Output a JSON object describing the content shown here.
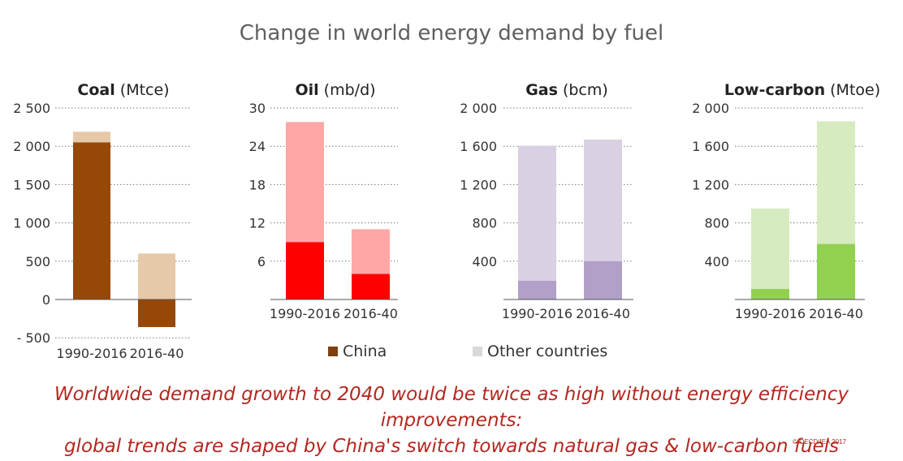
{
  "title": "Change in world energy demand by fuel",
  "legend": [
    {
      "label": "China",
      "color": "#8a4a1a"
    },
    {
      "label": "Other countries",
      "color": "#d9d9d9"
    }
  ],
  "footer": {
    "line1": "Worldwide demand growth to 2040 would be twice as high without energy efficiency improvements:",
    "line2": "global trends are shaped by China's switch towards natural gas & low-carbon fuels",
    "credit": "© OECD/IEA 2017"
  },
  "chart_data": [
    {
      "type": "bar",
      "stacked": true,
      "grid": true,
      "title": "Coal",
      "unit": "(Mtce)",
      "categories": [
        "1990-2016",
        "2016-40"
      ],
      "ylim": [
        -500,
        2500
      ],
      "yticks": [
        -500,
        0,
        500,
        1000,
        1500,
        2000,
        2500
      ],
      "ytick_labels": [
        "- 500",
        "0",
        "500",
        "1 000",
        "1 500",
        "2 000",
        "2 500"
      ],
      "series": [
        {
          "name": "China",
          "color": "#974706",
          "values": [
            2050,
            -360
          ]
        },
        {
          "name": "Other countries",
          "color": "#e6c9a8",
          "values": [
            140,
            600
          ]
        }
      ]
    },
    {
      "type": "bar",
      "stacked": true,
      "grid": true,
      "title": "Oil",
      "unit": "(mb/d)",
      "categories": [
        "1990-2016",
        "2016-40"
      ],
      "ylim": [
        0,
        30
      ],
      "yticks": [
        6,
        12,
        18,
        24,
        30
      ],
      "ytick_labels": [
        "6",
        "12",
        "18",
        "24",
        "30"
      ],
      "series": [
        {
          "name": "China",
          "color": "#ff0000",
          "values": [
            9,
            4
          ]
        },
        {
          "name": "Other countries",
          "color": "#ffa6a6",
          "values": [
            18.8,
            7
          ]
        }
      ]
    },
    {
      "type": "bar",
      "stacked": true,
      "grid": true,
      "title": "Gas",
      "unit": "(bcm)",
      "categories": [
        "1990-2016",
        "2016-40"
      ],
      "ylim": [
        0,
        2000
      ],
      "yticks": [
        400,
        800,
        1200,
        1600,
        2000
      ],
      "ytick_labels": [
        "400",
        "800",
        "1 200",
        "1 600",
        "2 000"
      ],
      "series": [
        {
          "name": "China",
          "color": "#b1a0c7",
          "values": [
            195,
            400
          ]
        },
        {
          "name": "Other countries",
          "color": "#d9d0e3",
          "values": [
            1410,
            1270
          ]
        }
      ]
    },
    {
      "type": "bar",
      "stacked": true,
      "grid": true,
      "title": "Low-carbon",
      "unit": "(Mtoe)",
      "categories": [
        "1990-2016",
        "2016-40"
      ],
      "ylim": [
        0,
        2000
      ],
      "yticks": [
        400,
        800,
        1200,
        1600,
        2000
      ],
      "ytick_labels": [
        "400",
        "800",
        "1 200",
        "1 600",
        "2 000"
      ],
      "series": [
        {
          "name": "China",
          "color": "#92d050",
          "values": [
            110,
            580
          ]
        },
        {
          "name": "Other countries",
          "color": "#d7ebc1",
          "values": [
            840,
            1280
          ]
        }
      ]
    }
  ]
}
